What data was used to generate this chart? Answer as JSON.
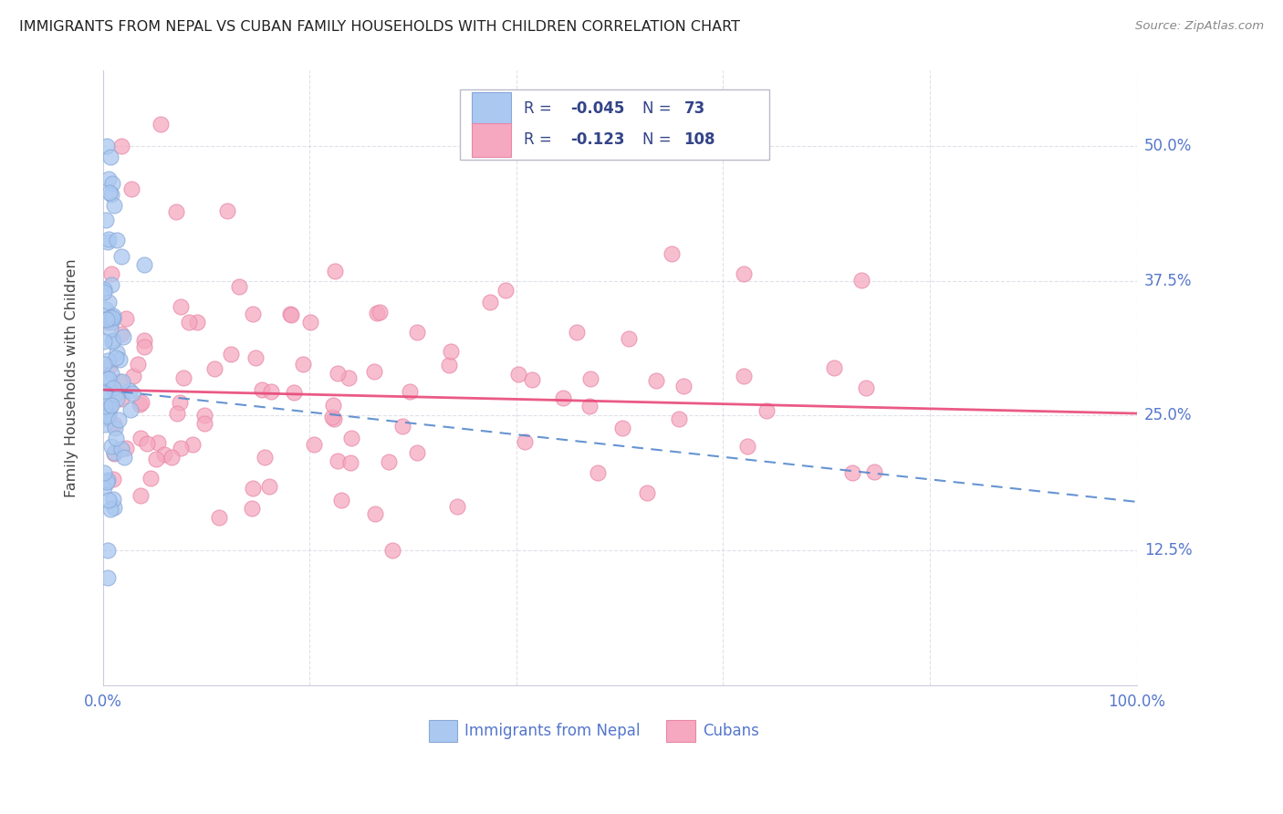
{
  "title": "IMMIGRANTS FROM NEPAL VS CUBAN FAMILY HOUSEHOLDS WITH CHILDREN CORRELATION CHART",
  "source": "Source: ZipAtlas.com",
  "ylabel": "Family Households with Children",
  "ytick_vals": [
    0.125,
    0.25,
    0.375,
    0.5
  ],
  "ytick_labels": [
    "12.5%",
    "25.0%",
    "37.5%",
    "50.0%"
  ],
  "xlim": [
    0.0,
    1.0
  ],
  "ylim": [
    0.0,
    0.57
  ],
  "nepal_color": "#aac8f0",
  "cuban_color": "#f5a8c0",
  "nepal_edge": "#88a8d8",
  "cuban_edge": "#e888a8",
  "nepal_trend_color": "#5588cc",
  "cuban_trend_color": "#e84878",
  "legend_text_color": "#334488",
  "legend_value_color": "#334488",
  "tick_color": "#5577cc",
  "nepal_trend_start_y": 0.274,
  "nepal_trend_end_y": 0.17,
  "cuban_trend_start_y": 0.274,
  "cuban_trend_end_y": 0.252
}
